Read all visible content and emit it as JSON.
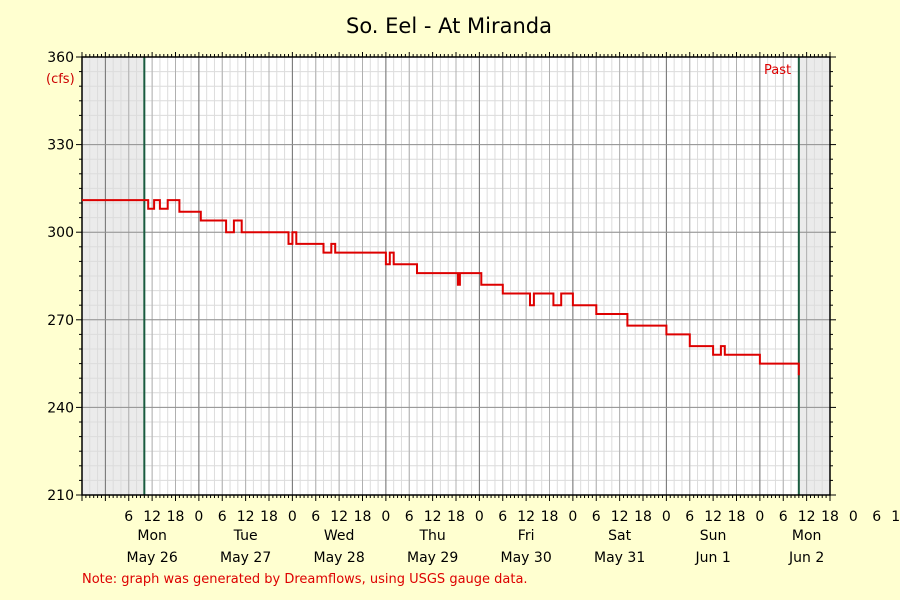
{
  "chart_data": {
    "type": "line",
    "title": "So. Eel - At Miranda",
    "ylabel": "(cfs)",
    "ylim": [
      210,
      360
    ],
    "y_ticks": [
      210,
      240,
      270,
      300,
      330,
      360
    ],
    "x_range_hours": [
      0,
      192
    ],
    "x_range_desc": "May 25 18:00 to Jun 2 18:00",
    "hour_ticks": [
      "6",
      "12",
      "18",
      "0",
      "6",
      "12",
      "18",
      "0",
      "6",
      "12",
      "18",
      "0",
      "6",
      "12",
      "18",
      "0",
      "6",
      "12",
      "18",
      "0",
      "6",
      "12",
      "18",
      "0",
      "6",
      "12",
      "18",
      "0",
      "6",
      "12",
      "18",
      "0",
      "6",
      "12",
      "18"
    ],
    "day_labels": [
      {
        "day": "Mon",
        "date": "May 26"
      },
      {
        "day": "Tue",
        "date": "May 27"
      },
      {
        "day": "Wed",
        "date": "May 28"
      },
      {
        "day": "Thu",
        "date": "May 29"
      },
      {
        "day": "Fri",
        "date": "May 30"
      },
      {
        "day": "Sat",
        "date": "May 31"
      },
      {
        "day": "Sun",
        "date": "Jun 1"
      },
      {
        "day": "Mon",
        "date": "Jun 2"
      }
    ],
    "grid": true,
    "shaded_regions": [
      "before May 26 10:00",
      "after Jun 2 10:00"
    ],
    "markers": [
      "May 26 10:00",
      "Jun 2 10:00"
    ],
    "annotation": "Past",
    "series": [
      {
        "color": "#dd0000",
        "points": [
          [
            "May 25 18:00",
            311
          ],
          [
            "May 26 10:00",
            311
          ],
          [
            "May 26 11:00",
            308
          ],
          [
            "May 26 12:30",
            311
          ],
          [
            "May 26 14:00",
            308
          ],
          [
            "May 26 16:00",
            311
          ],
          [
            "May 26 19:00",
            307
          ],
          [
            "May 27 0:00",
            307
          ],
          [
            "May 27 0:30",
            304
          ],
          [
            "May 27 6:00",
            304
          ],
          [
            "May 27 7:00",
            300
          ],
          [
            "May 27 9:00",
            304
          ],
          [
            "May 27 11:00",
            300
          ],
          [
            "May 27 22:00",
            300
          ],
          [
            "May 27 23:00",
            296
          ],
          [
            "May 28 0:00",
            300
          ],
          [
            "May 28 1:00",
            296
          ],
          [
            "May 28 7:00",
            296
          ],
          [
            "May 28 8:00",
            293
          ],
          [
            "May 28 10:00",
            296
          ],
          [
            "May 28 11:00",
            293
          ],
          [
            "May 28 23:00",
            293
          ],
          [
            "May 29 0:00",
            289
          ],
          [
            "May 29 1:00",
            293
          ],
          [
            "May 29 2:00",
            289
          ],
          [
            "May 29 7:00",
            289
          ],
          [
            "May 29 8:00",
            286
          ],
          [
            "May 29 18:00",
            286
          ],
          [
            "May 29 18:30",
            282
          ],
          [
            "May 29 19:00",
            286
          ],
          [
            "May 30 0:00",
            286
          ],
          [
            "May 30 0:30",
            282
          ],
          [
            "May 30 5:00",
            282
          ],
          [
            "May 30 6:00",
            279
          ],
          [
            "May 30 12:00",
            279
          ],
          [
            "May 30 13:00",
            275
          ],
          [
            "May 30 14:00",
            279
          ],
          [
            "May 30 18:00",
            279
          ],
          [
            "May 30 19:00",
            275
          ],
          [
            "May 30 21:00",
            279
          ],
          [
            "May 31 0:00",
            275
          ],
          [
            "May 31 5:00",
            275
          ],
          [
            "May 31 6:00",
            272
          ],
          [
            "May 31 13:00",
            272
          ],
          [
            "May 31 14:00",
            268
          ],
          [
            "May 31 23:00",
            268
          ],
          [
            "Jun 1 0:00",
            265
          ],
          [
            "Jun 1 5:00",
            265
          ],
          [
            "Jun 1 6:00",
            261
          ],
          [
            "Jun 1 11:00",
            261
          ],
          [
            "Jun 1 12:00",
            258
          ],
          [
            "Jun 1 14:00",
            261
          ],
          [
            "Jun 1 15:00",
            258
          ],
          [
            "Jun 1 23:00",
            258
          ],
          [
            "Jun 2 0:00",
            255
          ],
          [
            "Jun 2 10:00",
            255
          ],
          [
            "Jun 2 10:00",
            251
          ]
        ]
      }
    ]
  },
  "footer": {
    "note": "Note: graph was generated by Dreamflows, using USGS gauge data."
  }
}
